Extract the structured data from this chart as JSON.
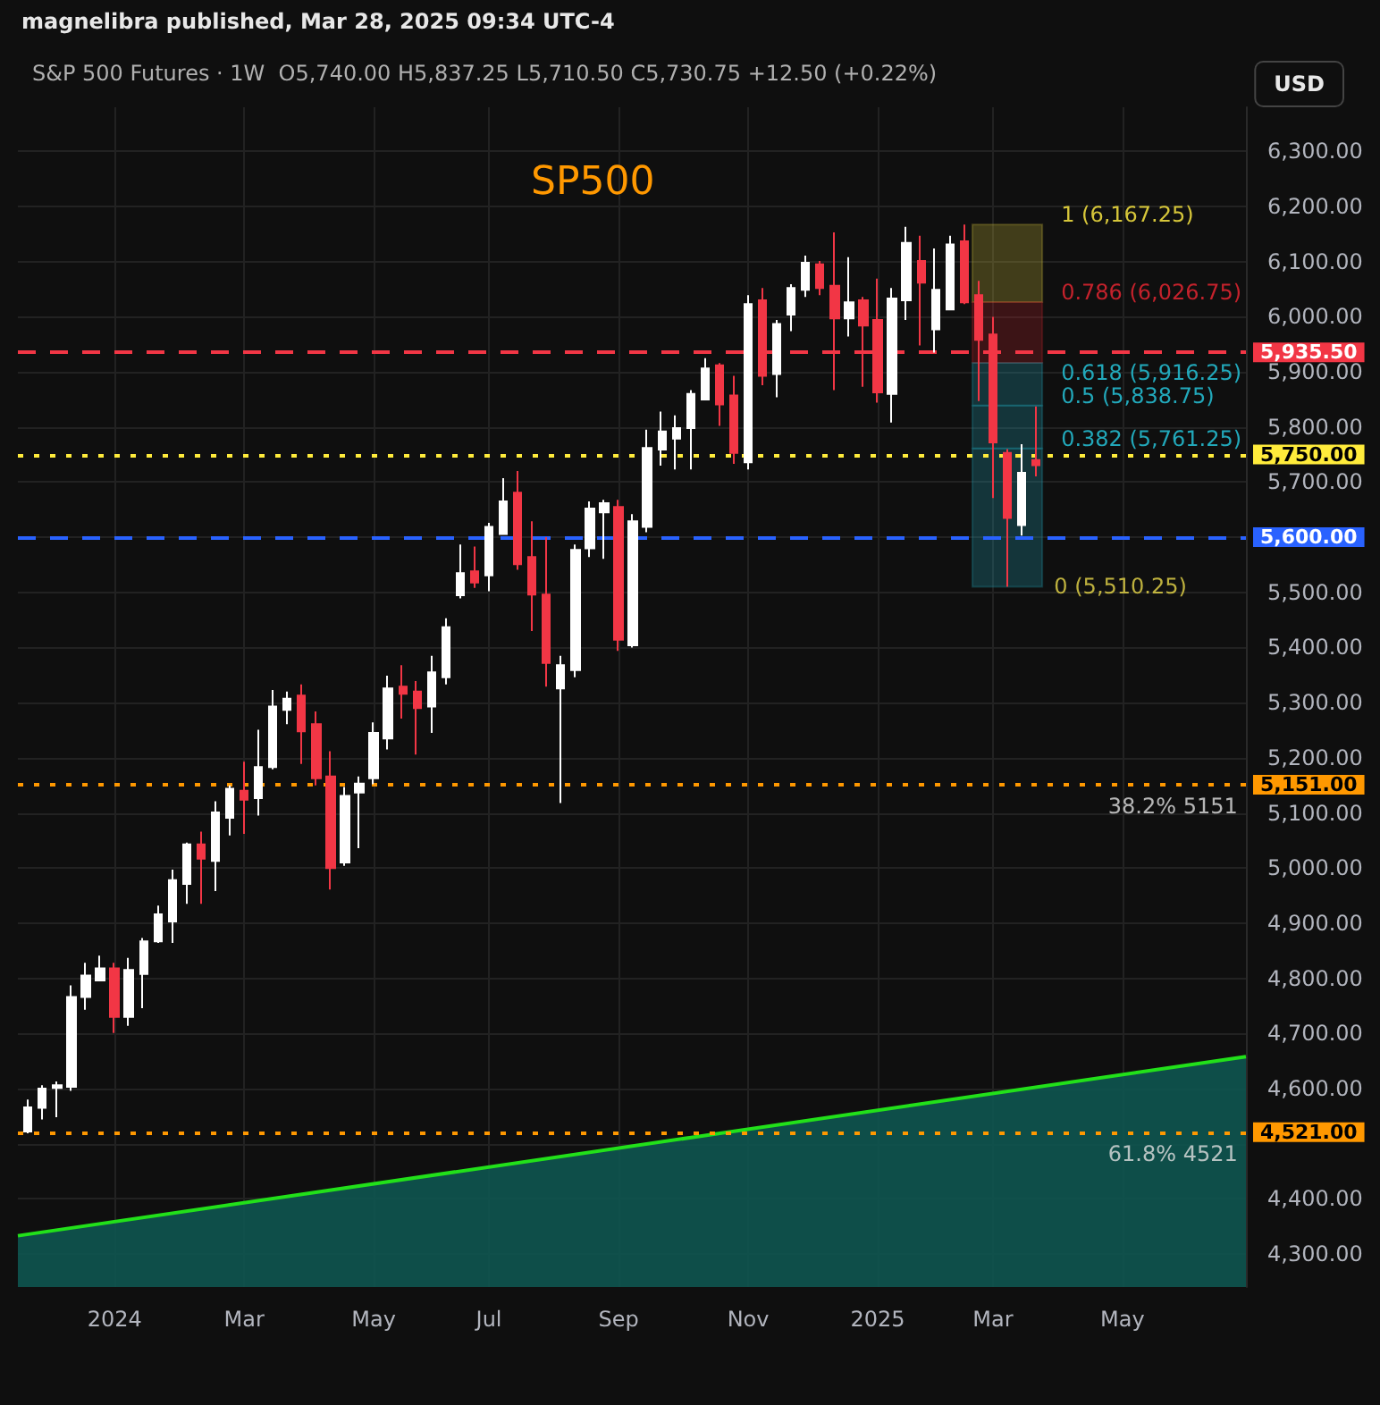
{
  "chart_data": {
    "type": "candlestick",
    "title": "SP500",
    "subtitle": "S&P 500 Futures · 1W  O5,740.00 H5,837.25 L5,710.50 C5,730.75 +12.50 (+0.22%)",
    "annotations": [
      "magnelibra published, Mar 28, 2025 09:34 UTC-4",
      "USD",
      {
        "text": "38.2% 5151",
        "x": "2025-06-30",
        "y": 5151
      },
      {
        "text": "61.8% 4521",
        "x": "2025-06-30",
        "y": 4521
      },
      {
        "text": "0 (5,510.25)",
        "x": "2025-03-31",
        "y": 5510.25
      }
    ],
    "x": [
      "2023-11-20",
      "2023-11-27",
      "2023-12-04",
      "2023-12-11",
      "2023-12-18",
      "2023-12-25",
      "2024-01-01",
      "2024-01-08",
      "2024-01-15",
      "2024-01-22",
      "2024-01-29",
      "2024-02-05",
      "2024-02-12",
      "2024-02-19",
      "2024-02-26",
      "2024-03-04",
      "2024-03-11",
      "2024-03-18",
      "2024-03-25",
      "2024-04-01",
      "2024-04-08",
      "2024-04-15",
      "2024-04-22",
      "2024-04-29",
      "2024-05-06",
      "2024-05-13",
      "2024-05-20",
      "2024-05-27",
      "2024-06-03",
      "2024-06-10",
      "2024-06-17",
      "2024-06-24",
      "2024-07-01",
      "2024-07-08",
      "2024-07-15",
      "2024-07-22",
      "2024-07-29",
      "2024-08-05",
      "2024-08-12",
      "2024-08-19",
      "2024-08-26",
      "2024-09-02",
      "2024-09-09",
      "2024-09-16",
      "2024-09-23",
      "2024-09-30",
      "2024-10-07",
      "2024-10-14",
      "2024-10-21",
      "2024-10-28",
      "2024-11-04",
      "2024-11-11",
      "2024-11-18",
      "2024-11-25",
      "2024-12-02",
      "2024-12-09",
      "2024-12-16",
      "2024-12-23",
      "2024-12-30",
      "2025-01-06",
      "2025-01-13",
      "2025-01-20",
      "2025-01-27",
      "2025-02-03",
      "2025-02-10",
      "2025-02-17",
      "2025-02-24",
      "2025-03-03",
      "2025-03-10",
      "2025-03-17",
      "2025-03-24"
    ],
    "ohlc": [
      [
        4522,
        4580,
        4519,
        4566
      ],
      [
        4565,
        4606,
        4544,
        4600
      ],
      [
        4601,
        4613,
        4548,
        4606
      ],
      [
        4603,
        4787,
        4596,
        4766
      ],
      [
        4766,
        4828,
        4743,
        4805
      ],
      [
        4796,
        4841,
        4796,
        4818
      ],
      [
        4818,
        4828,
        4701,
        4730
      ],
      [
        4730,
        4837,
        4714,
        4815
      ],
      [
        4808,
        4873,
        4746,
        4867
      ],
      [
        4867,
        4932,
        4864,
        4916
      ],
      [
        4903,
        4997,
        4864,
        4978
      ],
      [
        4971,
        5046,
        4935,
        5043
      ],
      [
        5043,
        5066,
        4935,
        5017
      ],
      [
        5013,
        5121,
        4958,
        5101
      ],
      [
        5091,
        5150,
        5059,
        5144
      ],
      [
        5140,
        5193,
        5062,
        5124
      ],
      [
        5127,
        5251,
        5095,
        5183
      ],
      [
        5183,
        5323,
        5179,
        5293
      ],
      [
        5287,
        5320,
        5261,
        5307
      ],
      [
        5313,
        5333,
        5189,
        5248
      ],
      [
        5261,
        5284,
        5150,
        5163
      ],
      [
        5166,
        5212,
        4961,
        5000
      ],
      [
        5010,
        5147,
        5004,
        5131
      ],
      [
        5137,
        5166,
        5036,
        5153
      ],
      [
        5163,
        5264,
        5152,
        5245
      ],
      [
        5235,
        5349,
        5215,
        5326
      ],
      [
        5329,
        5368,
        5271,
        5316
      ],
      [
        5320,
        5339,
        5206,
        5290
      ],
      [
        5293,
        5385,
        5245,
        5355
      ],
      [
        5346,
        5453,
        5333,
        5437
      ],
      [
        5495,
        5587,
        5489,
        5535
      ],
      [
        5538,
        5583,
        5508,
        5518
      ],
      [
        5531,
        5626,
        5502,
        5619
      ],
      [
        5606,
        5707,
        5606,
        5665
      ],
      [
        5681,
        5720,
        5541,
        5551
      ],
      [
        5564,
        5629,
        5430,
        5496
      ],
      [
        5496,
        5600,
        5329,
        5372
      ],
      [
        5326,
        5385,
        5118,
        5368
      ],
      [
        5359,
        5587,
        5346,
        5577
      ],
      [
        5580,
        5665,
        5564,
        5652
      ],
      [
        5645,
        5668,
        5561,
        5662
      ],
      [
        5655,
        5668,
        5394,
        5414
      ],
      [
        5404,
        5642,
        5400,
        5629
      ],
      [
        5619,
        5795,
        5609,
        5762
      ],
      [
        5759,
        5828,
        5730,
        5792
      ],
      [
        5779,
        5821,
        5723,
        5798
      ],
      [
        5798,
        5867,
        5723,
        5860
      ],
      [
        5850,
        5925,
        5850,
        5906
      ],
      [
        5912,
        5916,
        5802,
        5841
      ],
      [
        5857,
        5893,
        5733,
        5753
      ],
      [
        5736,
        6039,
        5723,
        6023
      ],
      [
        6030,
        6052,
        5876,
        5893
      ],
      [
        5896,
        5994,
        5854,
        5987
      ],
      [
        6004,
        6059,
        5974,
        6052
      ],
      [
        6049,
        6111,
        6036,
        6098
      ],
      [
        6095,
        6101,
        6039,
        6052
      ],
      [
        6056,
        6153,
        5867,
        5997
      ],
      [
        5997,
        6108,
        5964,
        6026
      ],
      [
        6030,
        6036,
        5873,
        5984
      ],
      [
        5994,
        6069,
        5844,
        5863
      ],
      [
        5860,
        6052,
        5808,
        6033
      ],
      [
        6030,
        6163,
        5994,
        6134
      ],
      [
        6101,
        6147,
        5948,
        6062
      ],
      [
        5977,
        6124,
        5935,
        6049
      ],
      [
        6013,
        6147,
        6013,
        6131
      ],
      [
        6137,
        6167.25,
        6023,
        6026
      ],
      [
        6039,
        6065,
        5847,
        5958
      ],
      [
        5968,
        6000,
        5671,
        5772
      ],
      [
        5753,
        5760,
        5510.25,
        5635
      ],
      [
        5622,
        5769,
        5603,
        5717
      ],
      [
        5740,
        5837.25,
        5710.5,
        5730.75
      ]
    ],
    "colors": [
      "#ffffff",
      "#ffffff",
      "#ffffff",
      "#ffffff",
      "#ffffff",
      "#ffffff",
      "#f23645",
      "#ffffff",
      "#ffffff",
      "#ffffff",
      "#ffffff",
      "#ffffff",
      "#f23645",
      "#ffffff",
      "#ffffff",
      "#f23645",
      "#ffffff",
      "#ffffff",
      "#ffffff",
      "#f23645",
      "#f23645",
      "#f23645",
      "#ffffff",
      "#ffffff",
      "#ffffff",
      "#ffffff",
      "#f23645",
      "#f23645",
      "#ffffff",
      "#ffffff",
      "#ffffff",
      "#f23645",
      "#ffffff",
      "#ffffff",
      "#f23645",
      "#f23645",
      "#f23645",
      "#ffffff",
      "#ffffff",
      "#ffffff",
      "#ffffff",
      "#f23645",
      "#ffffff",
      "#ffffff",
      "#ffffff",
      "#ffffff",
      "#ffffff",
      "#ffffff",
      "#f23645",
      "#f23645",
      "#ffffff",
      "#f23645",
      "#ffffff",
      "#ffffff",
      "#ffffff",
      "#f23645",
      "#f23645",
      "#ffffff",
      "#f23645",
      "#f23645",
      "#ffffff",
      "#ffffff",
      "#f23645",
      "#ffffff",
      "#ffffff",
      "#f23645",
      "#f23645",
      "#f23645",
      "#f23645",
      "#ffffff",
      "#f23645"
    ],
    "series": [
      {
        "type": "area",
        "color": "#22e01a",
        "x": [
          "2023-11-15",
          "2025-07-04"
        ],
        "values": [
          4333,
          4658
        ]
      }
    ],
    "xlim": [
      "2023-11-15",
      "2025-07-04"
    ],
    "xticks": [
      {
        "value": "2024-01-01",
        "label": "2024"
      },
      {
        "value": "2024-03-04",
        "label": "Mar"
      },
      {
        "value": "2024-05-06",
        "label": "May"
      },
      {
        "value": "2024-07-01",
        "label": "Jul"
      },
      {
        "value": "2024-09-02",
        "label": "Sep"
      },
      {
        "value": "2024-11-04",
        "label": "Nov"
      },
      {
        "value": "2025-01-06",
        "label": "2025"
      },
      {
        "value": "2025-03-03",
        "label": "Mar"
      },
      {
        "value": "2025-05-05",
        "label": "May"
      }
    ],
    "ylim": [
      4240,
      6380
    ],
    "yticks": [
      {
        "value": 4300,
        "label": "4,300.00"
      },
      {
        "value": 4400,
        "label": "4,400.00"
      },
      {
        "value": 4500,
        "label": null
      },
      {
        "value": 4600,
        "label": "4,600.00"
      },
      {
        "value": 4700,
        "label": "4,700.00"
      },
      {
        "value": 4800,
        "label": "4,800.00"
      },
      {
        "value": 4900,
        "label": "4,900.00"
      },
      {
        "value": 5000,
        "label": "5,000.00"
      },
      {
        "value": 5100,
        "label": "5,100.00"
      },
      {
        "value": 5200,
        "label": "5,200.00"
      },
      {
        "value": 5300,
        "label": "5,300.00"
      },
      {
        "value": 5400,
        "label": "5,400.00"
      },
      {
        "value": 5500,
        "label": "5,500.00"
      },
      {
        "value": 5600,
        "label": null
      },
      {
        "value": 5700,
        "label": "5,700.00"
      },
      {
        "value": 5800,
        "label": "5,800.00"
      },
      {
        "value": 5900,
        "label": "5,900.00"
      },
      {
        "value": 6000,
        "label": "6,000.00"
      },
      {
        "value": 6100,
        "label": "6,100.00"
      },
      {
        "value": 6200,
        "label": "6,200.00"
      },
      {
        "value": 6300,
        "label": "6,300.00"
      }
    ],
    "ref_lines": [
      {
        "axis": "y",
        "value": 5935.5,
        "label": "5,935.50",
        "color": "#f23645",
        "line_style": "dashed"
      },
      {
        "axis": "y",
        "value": 5750,
        "label": "5,750.00",
        "color": "#ffeb3b",
        "line_style": "dotted"
      },
      {
        "axis": "y",
        "value": 5600,
        "label": "5,600.00",
        "color": "#2962ff",
        "line_style": "dashed"
      },
      {
        "axis": "y",
        "value": 5151,
        "label": "5,151.00",
        "color": "#ff9800",
        "line_style": "dotted"
      },
      {
        "axis": "y",
        "value": 4521,
        "label": "4,521.00",
        "color": "#ff9800",
        "line_style": "dotted"
      }
    ],
    "bands": [
      {
        "axis": "y",
        "from": 6026.75,
        "to": 6167.25,
        "label": "1 (6,167.25)",
        "color": "#d6c63a"
      },
      {
        "axis": "y",
        "from": 5916.25,
        "to": 6026.75,
        "label": "0.786 (6,026.75)",
        "color": "#c4222c"
      },
      {
        "axis": "y",
        "from": 5838.75,
        "to": 5916.25,
        "label": "0.618 (5,916.25)",
        "color": "#22a8ba"
      },
      {
        "axis": "y",
        "from": 5761.25,
        "to": 5838.75,
        "label": "0.5 (5,838.75)",
        "color": "#22a8ba"
      },
      {
        "axis": "y",
        "from": 5510.25,
        "to": 5761.25,
        "label": "0.382 (5,761.25)",
        "color": "#22a8ba"
      }
    ],
    "grid": true
  }
}
